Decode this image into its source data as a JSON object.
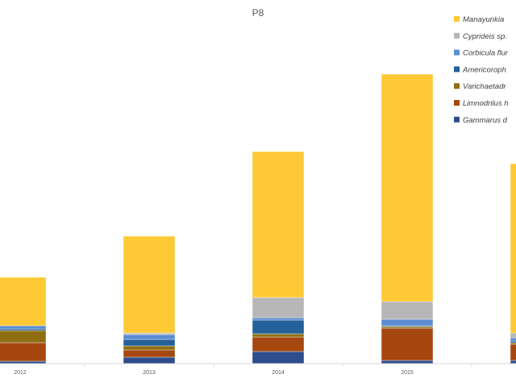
{
  "chart_data": {
    "type": "bar",
    "stacked": true,
    "title": "P8",
    "xlabel": "",
    "ylabel": "",
    "categories": [
      "2012",
      "2013",
      "2014",
      "2015",
      ""
    ],
    "ylim": [
      0,
      360
    ],
    "grid": false,
    "legend_position": "right",
    "series": [
      {
        "name": "Gammarus d",
        "color": "#2F4C8C",
        "values": [
          3,
          8,
          15,
          4,
          4
        ]
      },
      {
        "name": "Limnodrilus h",
        "color": "#A5470F",
        "values": [
          23,
          9,
          18,
          40,
          20
        ]
      },
      {
        "name": "Varichaetadr",
        "color": "#8F6E12",
        "values": [
          15,
          5,
          4,
          2,
          2
        ]
      },
      {
        "name": "Americoroph",
        "color": "#24609A",
        "values": [
          2,
          8,
          17,
          1,
          2
        ]
      },
      {
        "name": "Corbicula flur",
        "color": "#5B8DD0",
        "values": [
          4,
          6,
          3,
          8,
          4
        ]
      },
      {
        "name": "Cyprideis sp.",
        "color": "#B7B7B7",
        "values": [
          0,
          2,
          25,
          22,
          6
        ]
      },
      {
        "name": "Manayunkia",
        "color": "#FDC935",
        "values": [
          60,
          120,
          181,
          282,
          210
        ]
      }
    ]
  }
}
